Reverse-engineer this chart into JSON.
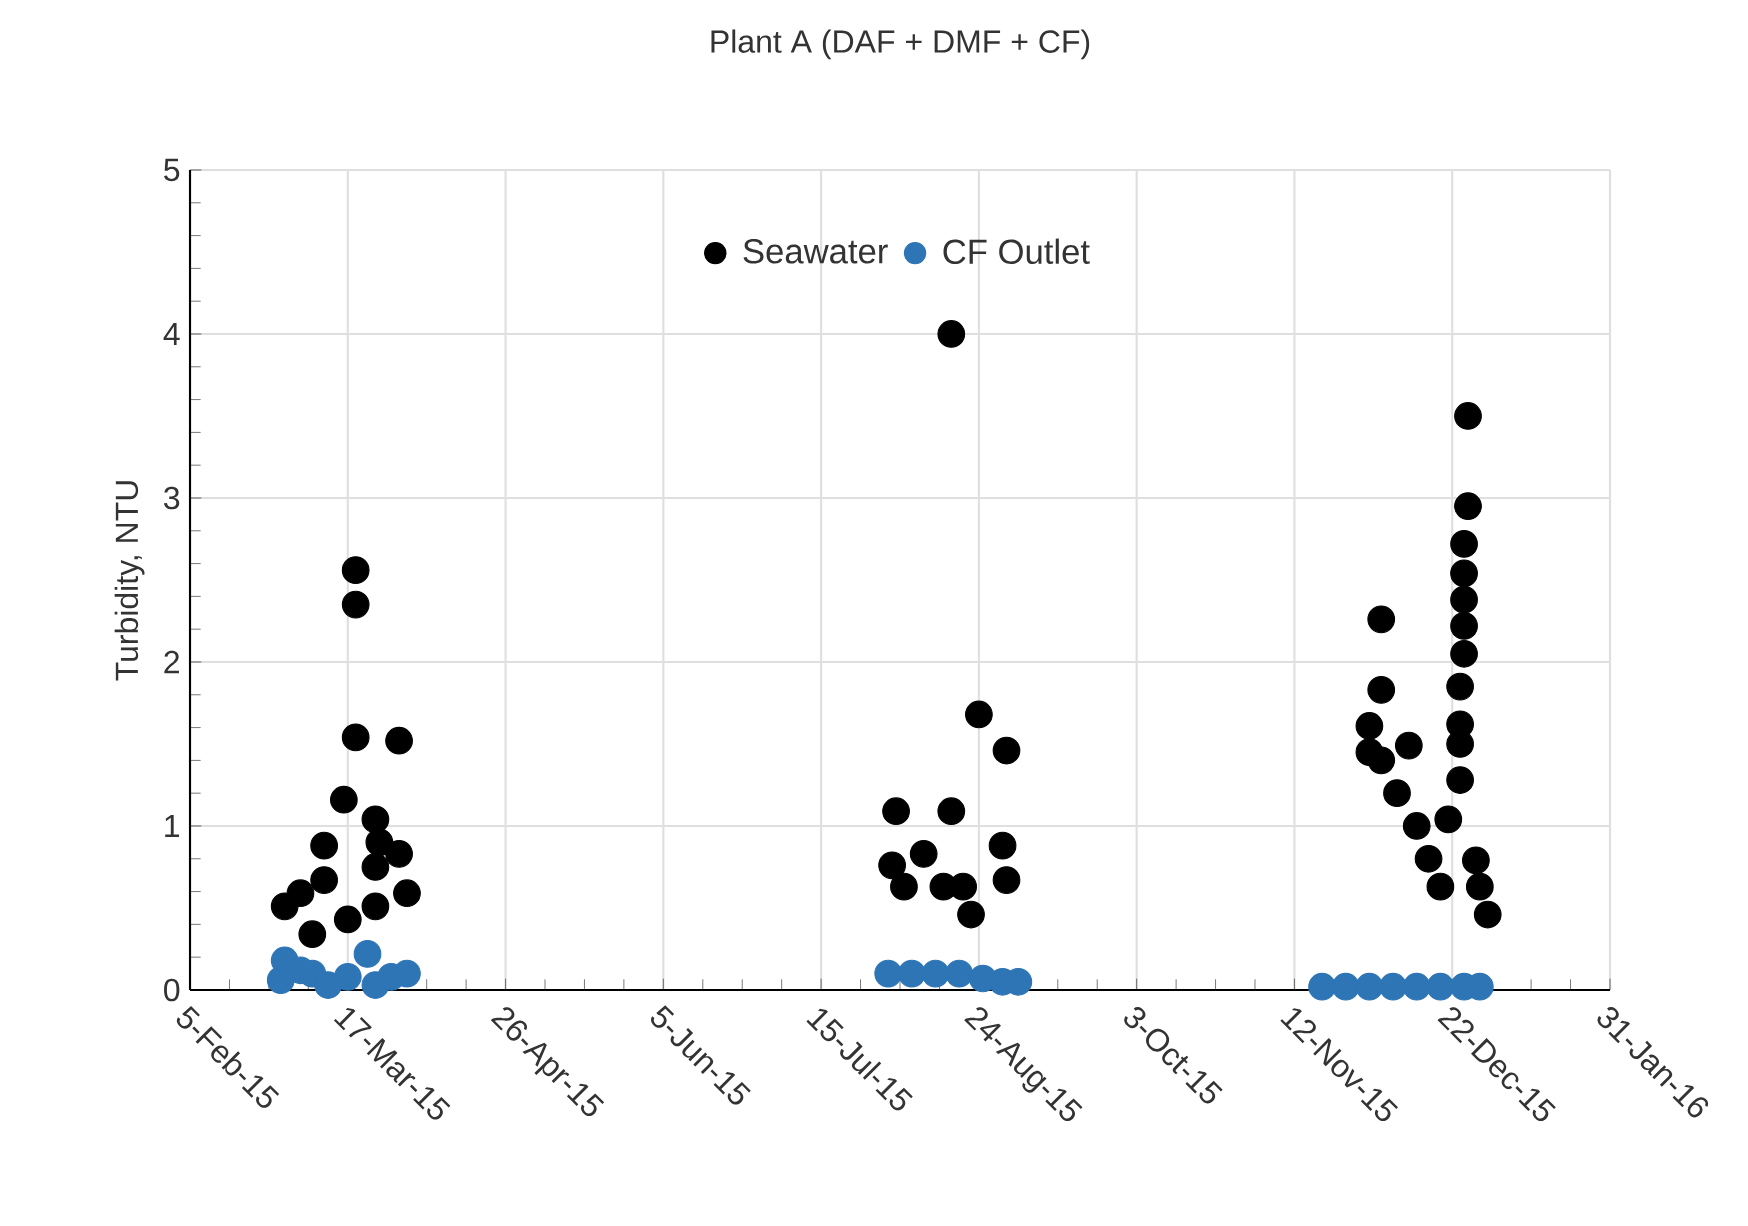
{
  "chart_data": {
    "type": "scatter",
    "title": "Plant A (DAF + DMF + CF)",
    "ylabel": "Turbidity, NTU",
    "xlim": [
      "2015-02-05",
      "2016-01-31"
    ],
    "xticks": [
      {
        "value": "2015-02-05",
        "label": "5-Feb-15"
      },
      {
        "value": "2015-03-17",
        "label": "17-Mar-15"
      },
      {
        "value": "2015-04-26",
        "label": "26-Apr-15"
      },
      {
        "value": "2015-06-05",
        "label": "5-Jun-15"
      },
      {
        "value": "2015-07-15",
        "label": "15-Jul-15"
      },
      {
        "value": "2015-08-24",
        "label": "24-Aug-15"
      },
      {
        "value": "2015-10-03",
        "label": "3-Oct-15"
      },
      {
        "value": "2015-11-12",
        "label": "12-Nov-15"
      },
      {
        "value": "2015-12-22",
        "label": "22-Dec-15"
      },
      {
        "value": "2016-01-31",
        "label": "31-Jan-16"
      }
    ],
    "ylim": [
      0,
      5
    ],
    "yticks": [
      0,
      1,
      2,
      3,
      4,
      5
    ],
    "grid": true,
    "legend": "top",
    "marker": "circle",
    "series": [
      {
        "name": "Seawater",
        "color": "#000000",
        "x": [
          "2015-03-01",
          "2015-03-05",
          "2015-03-08",
          "2015-03-11",
          "2015-03-11",
          "2015-03-16",
          "2015-03-17",
          "2015-03-19",
          "2015-03-19",
          "2015-03-19",
          "2015-03-24",
          "2015-03-24",
          "2015-03-24",
          "2015-03-25",
          "2015-03-30",
          "2015-03-30",
          "2015-04-01",
          "2015-08-02",
          "2015-08-03",
          "2015-08-05",
          "2015-08-10",
          "2015-08-15",
          "2015-08-17",
          "2015-08-17",
          "2015-08-20",
          "2015-08-22",
          "2015-08-24",
          "2015-08-30",
          "2015-08-31",
          "2015-08-31",
          "2015-12-01",
          "2015-12-01",
          "2015-12-04",
          "2015-12-04",
          "2015-12-04",
          "2015-12-08",
          "2015-12-11",
          "2015-12-13",
          "2015-12-16",
          "2015-12-19",
          "2015-12-21",
          "2015-12-24",
          "2015-12-24",
          "2015-12-24",
          "2015-12-24",
          "2015-12-25",
          "2015-12-25",
          "2015-12-25",
          "2015-12-25",
          "2015-12-25",
          "2015-12-26",
          "2015-12-26",
          "2015-12-28",
          "2015-12-29",
          "2015-12-31"
        ],
        "values": [
          0.51,
          0.59,
          0.34,
          0.88,
          0.67,
          1.16,
          0.43,
          2.56,
          2.35,
          1.54,
          1.04,
          0.51,
          0.75,
          0.9,
          1.52,
          0.83,
          0.59,
          0.76,
          1.09,
          0.63,
          0.83,
          0.63,
          4.0,
          1.09,
          0.63,
          0.46,
          1.68,
          0.88,
          1.46,
          0.67,
          1.61,
          1.45,
          2.26,
          1.83,
          1.4,
          1.2,
          1.49,
          1.0,
          0.8,
          0.63,
          1.04,
          1.28,
          1.5,
          1.62,
          1.85,
          2.05,
          2.22,
          2.38,
          2.54,
          2.72,
          2.95,
          3.5,
          0.79,
          0.63,
          0.46
        ]
      },
      {
        "name": "CF Outlet",
        "color": "#2e75b6",
        "x": [
          "2015-02-28",
          "2015-03-01",
          "2015-03-05",
          "2015-03-08",
          "2015-03-12",
          "2015-03-17",
          "2015-03-22",
          "2015-03-24",
          "2015-03-28",
          "2015-04-01",
          "2015-08-01",
          "2015-08-07",
          "2015-08-13",
          "2015-08-19",
          "2015-08-25",
          "2015-08-30",
          "2015-09-03",
          "2015-11-19",
          "2015-11-25",
          "2015-12-01",
          "2015-12-07",
          "2015-12-13",
          "2015-12-19",
          "2015-12-25",
          "2015-12-29"
        ],
        "values": [
          0.06,
          0.18,
          0.12,
          0.1,
          0.03,
          0.08,
          0.22,
          0.03,
          0.08,
          0.1,
          0.1,
          0.1,
          0.1,
          0.1,
          0.07,
          0.05,
          0.05,
          0.02,
          0.02,
          0.02,
          0.02,
          0.02,
          0.02,
          0.02,
          0.02
        ]
      }
    ]
  }
}
